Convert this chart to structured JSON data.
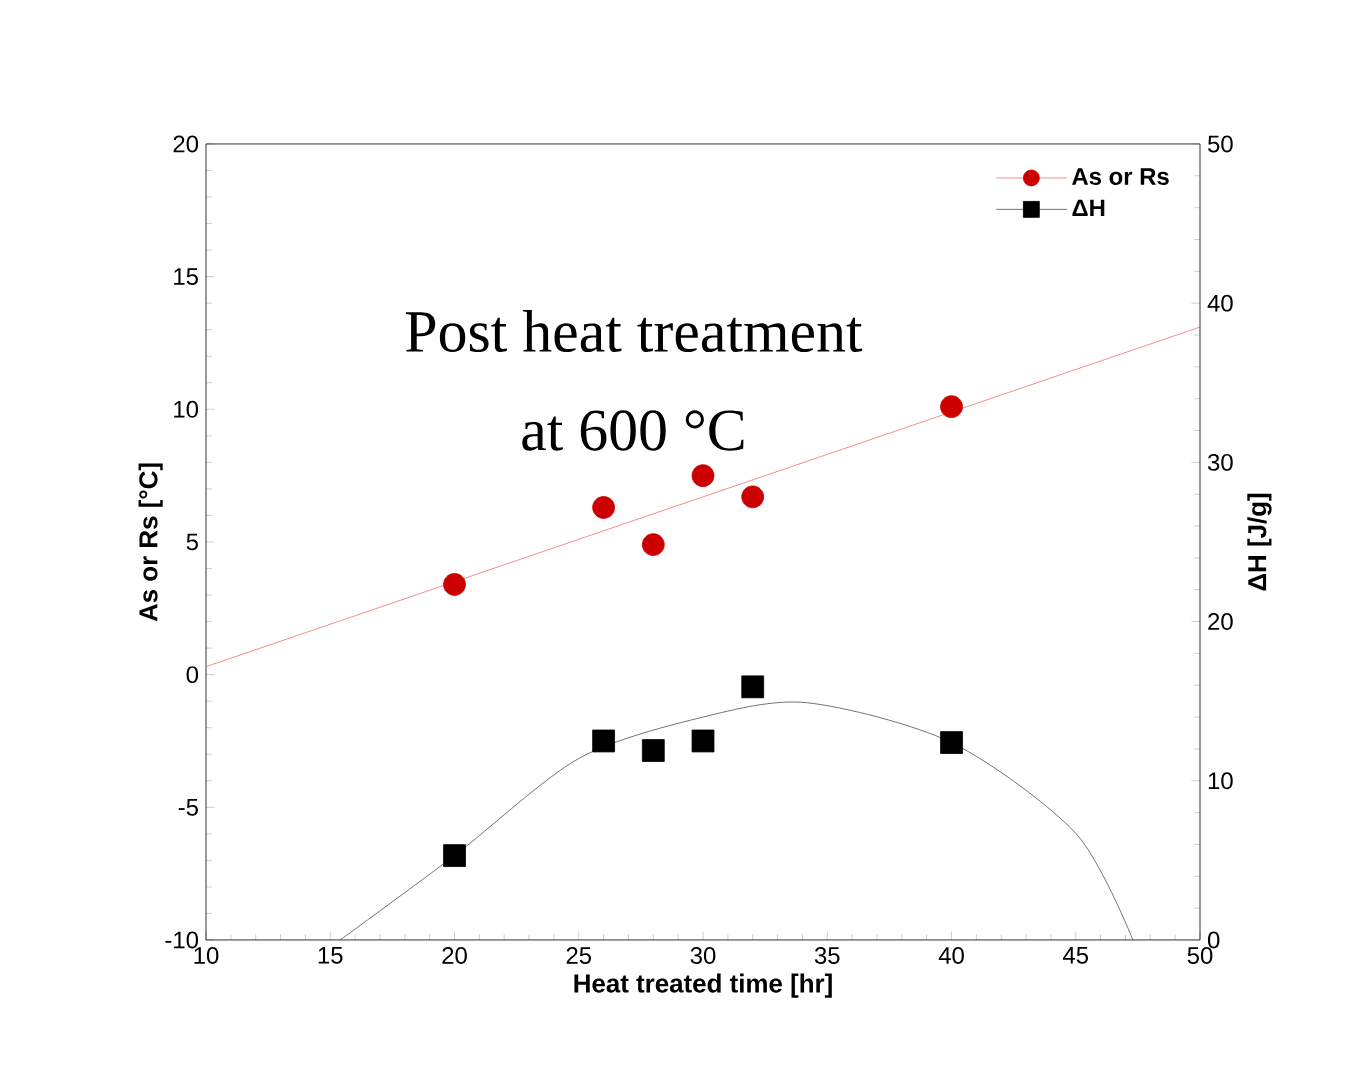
{
  "chart_data": {
    "type": "scatter",
    "xlabel": "Heat treated time [hr]",
    "ylabel": "As or Rs  [°C]",
    "y2label": "ΔH [J/g]",
    "annotations": [
      "Post heat treatment",
      "at 600 °C"
    ],
    "xlim": [
      10,
      50
    ],
    "xticks": [
      10,
      15,
      20,
      25,
      30,
      35,
      40,
      45,
      50
    ],
    "ylim": [
      -10,
      20
    ],
    "yticks": [
      -10,
      -5,
      0,
      5,
      10,
      15,
      20
    ],
    "y2lim": [
      0,
      50
    ],
    "y2ticks": [
      0,
      10,
      20,
      30,
      40,
      50
    ],
    "legend": "top right",
    "series": [
      {
        "name": "As or Rs",
        "marker": "circle",
        "color": "#cc0000",
        "x": [
          20,
          26,
          28,
          30,
          32,
          40
        ],
        "values": [
          3.4,
          6.3,
          4.9,
          7.5,
          6.7,
          10.1
        ]
      },
      {
        "name": "ΔH",
        "marker": "square",
        "color": "#000000",
        "axis": "y2",
        "x": [
          20,
          26,
          28,
          30,
          32,
          40
        ],
        "values": [
          5.3,
          12.5,
          11.9,
          12.5,
          15.9,
          12.4
        ]
      },
      {
        "type": "line",
        "color": "#f07070",
        "x": [
          10,
          50
        ],
        "values": [
          0.3,
          13.1
        ]
      },
      {
        "type": "line",
        "color": "#505050",
        "axis": "y2",
        "x": [
          15.4,
          20,
          25,
          30,
          34.2,
          40,
          45,
          47.3
        ],
        "values": [
          0,
          5.3,
          11.4,
          14.0,
          14.9,
          12.4,
          6.7,
          0
        ]
      }
    ]
  }
}
